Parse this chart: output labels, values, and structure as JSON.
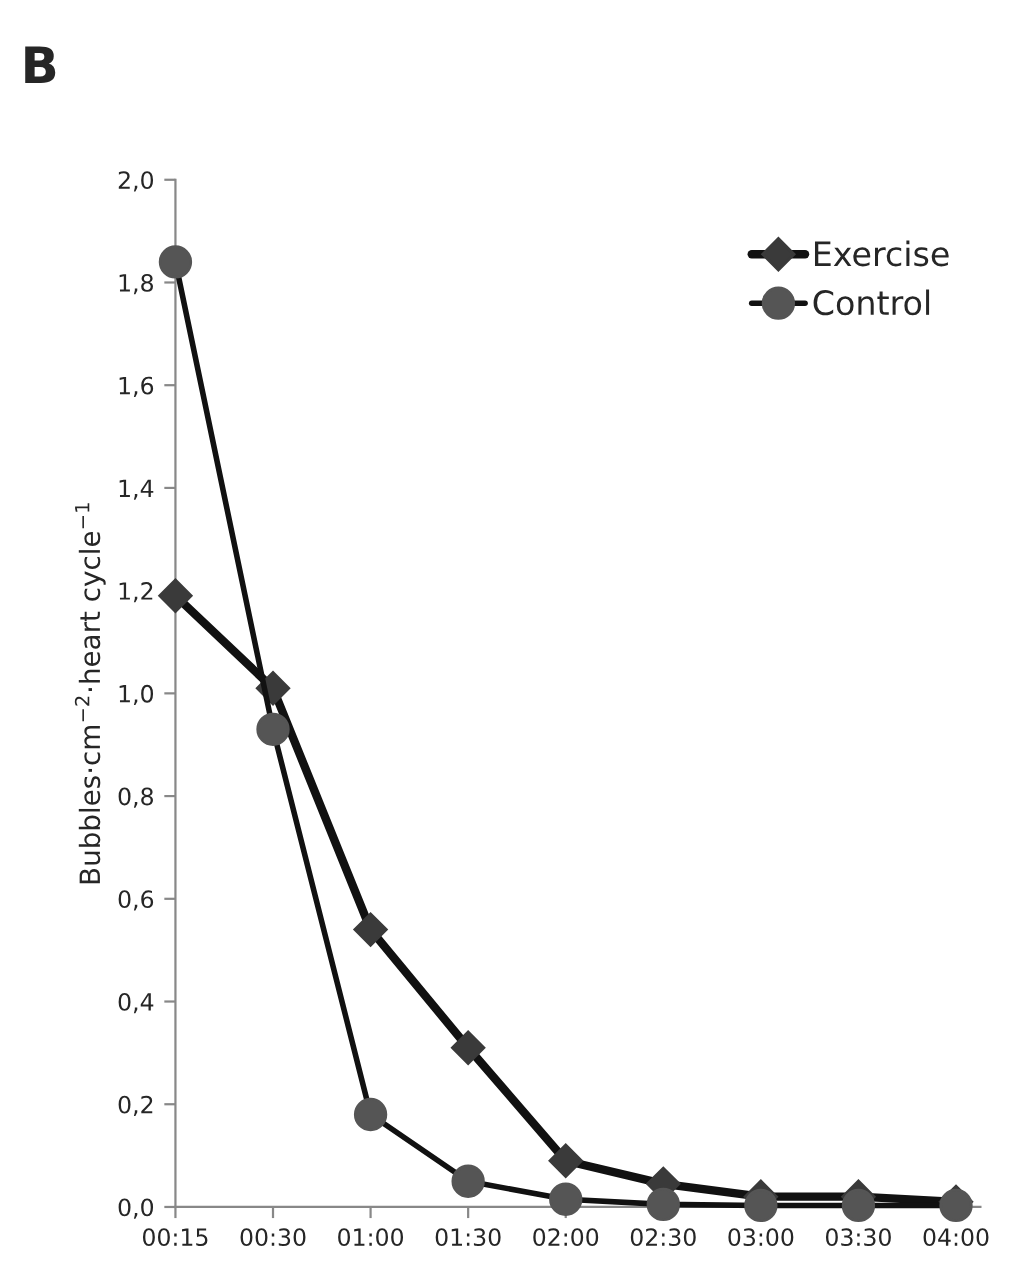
{
  "chart_data": {
    "type": "line",
    "ylabel": "Bubbles·cm$^{−2}$·heart cycle$^{−1}$",
    "annotations": [
      "B"
    ],
    "categories": [
      "00:15",
      "00:30",
      "01:00",
      "01:30",
      "02:00",
      "02:30",
      "03:00",
      "03:30",
      "04:00"
    ],
    "series": [
      {
        "name": "Exercise",
        "color": "#3a3a3a",
        "marker": "diamond",
        "values": [
          1.19,
          1.01,
          0.54,
          0.31,
          0.09,
          0.045,
          0.02,
          0.02,
          0.01
        ]
      },
      {
        "name": "Control",
        "color": "#555555",
        "marker": "circle",
        "values": [
          1.84,
          0.93,
          0.18,
          0.05,
          0.015,
          0.005,
          0.003,
          0.003,
          0.003
        ]
      }
    ],
    "ylim": [
      0,
      2.0
    ],
    "yticks": [
      {
        "value": 0,
        "label": "0,0"
      },
      {
        "value": 0.2,
        "label": "0,2"
      },
      {
        "value": 0.4,
        "label": "0,4"
      },
      {
        "value": 0.6,
        "label": "0,6"
      },
      {
        "value": 0.8,
        "label": "0,8"
      },
      {
        "value": 1.0,
        "label": "1,0"
      },
      {
        "value": 1.2,
        "label": "1,2"
      },
      {
        "value": 1.4,
        "label": "1,4"
      },
      {
        "value": 1.6,
        "label": "1,6"
      },
      {
        "value": 1.8,
        "label": "1,8"
      },
      {
        "value": 2.0,
        "label": "2,0"
      }
    ],
    "grid": false,
    "legend": "top right"
  }
}
